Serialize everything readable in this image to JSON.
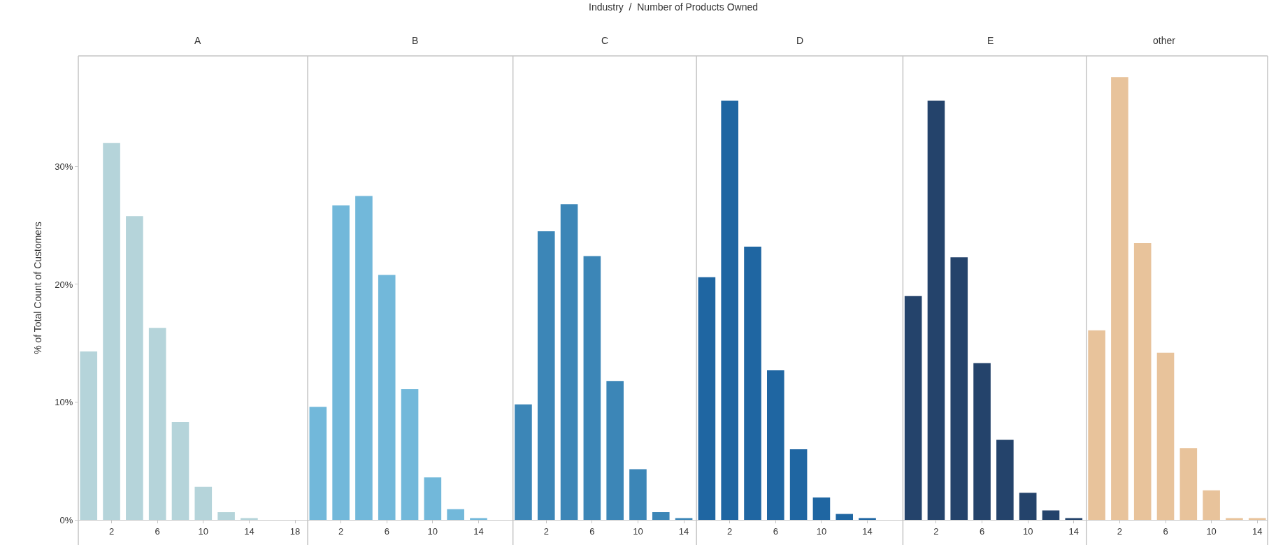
{
  "chart_data": [
    {
      "type": "bar",
      "title": "A",
      "ylabel": "% of Total Count of Customers",
      "annotations": [
        "Industry  /  Number of Products Owned"
      ],
      "color": "#b5d4da",
      "x": [
        0,
        2,
        4,
        6,
        8,
        10,
        12,
        14
      ],
      "values": [
        14.3,
        32.0,
        25.8,
        16.3,
        8.3,
        2.8,
        0.65,
        0.15
      ],
      "xlim": [
        -0.9,
        19.1
      ],
      "xticks": [
        2,
        6,
        10,
        14,
        18
      ],
      "ylim": [
        0,
        39.4
      ],
      "yticks": [
        {
          "value": 0,
          "label": "0%"
        },
        {
          "value": 10,
          "label": "10%"
        },
        {
          "value": 20,
          "label": "20%"
        },
        {
          "value": 30,
          "label": "30%"
        }
      ]
    },
    {
      "type": "bar",
      "title": "B",
      "color": "#72b8da",
      "x": [
        0,
        2,
        4,
        6,
        8,
        10,
        12,
        14
      ],
      "values": [
        9.6,
        26.7,
        27.5,
        20.8,
        11.1,
        3.6,
        0.9,
        0.15
      ],
      "xlim": [
        -0.9,
        17.0
      ],
      "xticks": [
        2,
        6,
        10,
        14
      ],
      "ylim": [
        0,
        39.4
      ],
      "tick_labels": "x"
    },
    {
      "type": "bar",
      "title": "C",
      "color": "#3c86b7",
      "x": [
        0,
        2,
        4,
        6,
        8,
        10,
        12,
        14
      ],
      "values": [
        9.8,
        24.5,
        26.8,
        22.4,
        11.8,
        4.3,
        0.65,
        0.15
      ],
      "xlim": [
        -0.9,
        15.1
      ],
      "xticks": [
        2,
        6,
        10,
        14
      ],
      "ylim": [
        0,
        39.4
      ],
      "tick_labels": "x"
    },
    {
      "type": "bar",
      "title": "D",
      "color": "#1f66a2",
      "x": [
        0,
        2,
        4,
        6,
        8,
        10,
        12,
        14
      ],
      "values": [
        20.6,
        35.6,
        23.2,
        12.7,
        6.0,
        1.9,
        0.5,
        0.15
      ],
      "xlim": [
        -0.9,
        17.1
      ],
      "xticks": [
        2,
        6,
        10,
        14
      ],
      "ylim": [
        0,
        39.4
      ],
      "tick_labels": "x"
    },
    {
      "type": "bar",
      "title": "E",
      "color": "#24436b",
      "x": [
        0,
        2,
        4,
        6,
        8,
        10,
        12,
        14
      ],
      "values": [
        19.0,
        35.6,
        22.3,
        13.3,
        6.8,
        2.3,
        0.8,
        0.15
      ],
      "xlim": [
        -0.9,
        15.1
      ],
      "xticks": [
        2,
        6,
        10,
        14
      ],
      "ylim": [
        0,
        39.4
      ],
      "tick_labels": "x"
    },
    {
      "type": "bar",
      "title": "other",
      "color": "#e8c39b",
      "x": [
        0,
        2,
        4,
        6,
        8,
        10,
        12,
        14
      ],
      "values": [
        16.1,
        37.6,
        23.5,
        14.2,
        6.1,
        2.5,
        0.15,
        0.15
      ],
      "xlim": [
        -0.9,
        14.9
      ],
      "xticks": [
        2,
        6,
        10,
        14
      ],
      "ylim": [
        0,
        39.4
      ],
      "tick_labels": "x"
    }
  ]
}
